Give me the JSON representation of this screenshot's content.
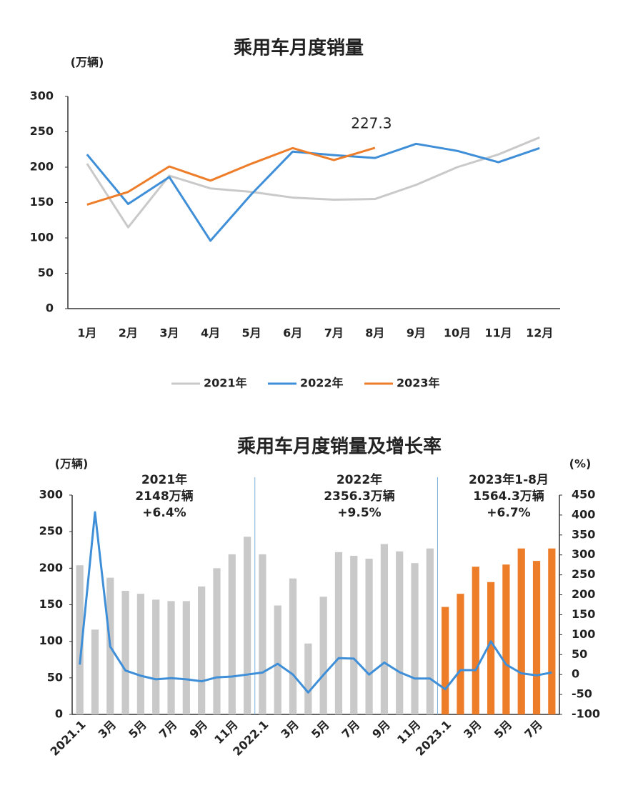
{
  "chart_data": [
    {
      "type": "line",
      "title": "乘用车月度销量",
      "y_unit": "(万辆)",
      "categories": [
        "1月",
        "2月",
        "3月",
        "4月",
        "5月",
        "6月",
        "7月",
        "8月",
        "9月",
        "10月",
        "11月",
        "12月"
      ],
      "series": [
        {
          "name": "2021年",
          "color": "#c9c9c9",
          "values": [
            205,
            115,
            188,
            170,
            165,
            157,
            154,
            155,
            175,
            200,
            218,
            242
          ]
        },
        {
          "name": "2022年",
          "color": "#3f8fd8",
          "values": [
            218,
            148,
            186,
            96,
            162,
            222,
            217,
            213,
            233,
            223,
            207,
            227
          ]
        },
        {
          "name": "2023年",
          "color": "#ee7d2a",
          "values": [
            147,
            165,
            201,
            181,
            205,
            227,
            210,
            227.3,
            null,
            null,
            null,
            null
          ],
          "label_last_point": true
        }
      ],
      "ylim": [
        0,
        300
      ],
      "yticks": [
        0,
        50,
        100,
        150,
        200,
        250,
        300
      ],
      "legend": "bottom"
    },
    {
      "type": "bar_line",
      "title": "乘用车月度销量及增长率",
      "y_unit": "(万辆)",
      "y2_unit": "(%)",
      "categories": [
        "2021.1",
        null,
        "3月",
        null,
        "5月",
        null,
        "7月",
        null,
        "9月",
        null,
        "11月",
        null,
        "2022.1",
        null,
        "3月",
        null,
        "5月",
        null,
        "7月",
        null,
        "9月",
        null,
        "11月",
        null,
        "2023.1",
        null,
        "3月",
        null,
        "5月",
        null,
        "7月",
        null
      ],
      "series": [
        {
          "type": "bar",
          "color": "#c9c9c9",
          "values": [
            204,
            116,
            187,
            169,
            165,
            157,
            155,
            155,
            175,
            200,
            219,
            243,
            219,
            149,
            186,
            97,
            161,
            222,
            217,
            213,
            233,
            223,
            207,
            227,
            null,
            null,
            null,
            null,
            null,
            null,
            null,
            null
          ]
        },
        {
          "type": "bar",
          "color": "#ee7d2a",
          "values": [
            null,
            null,
            null,
            null,
            null,
            null,
            null,
            null,
            null,
            null,
            null,
            null,
            null,
            null,
            null,
            null,
            null,
            null,
            null,
            null,
            null,
            null,
            null,
            null,
            147,
            165,
            202,
            181,
            205,
            227,
            210,
            227
          ]
        },
        {
          "type": "line",
          "axis": "y2",
          "color": "#3f8fd8",
          "values": [
            25,
            407,
            70,
            10,
            -3,
            -12,
            -9,
            -12,
            -17,
            -7,
            -5,
            0,
            5,
            27,
            0,
            -45,
            -1,
            41,
            40,
            0,
            30,
            6,
            -10,
            -10,
            -37,
            11,
            11,
            83,
            25,
            3,
            -2,
            5
          ]
        }
      ],
      "ylim": [
        0,
        300
      ],
      "yticks": [
        0,
        50,
        100,
        150,
        200,
        250,
        300
      ],
      "y2lim": [
        -100,
        450
      ],
      "y2ticks": [
        -100,
        -50,
        0,
        50,
        100,
        150,
        200,
        250,
        300,
        350,
        400,
        450
      ],
      "annotations": [
        {
          "lines": [
            "2021年",
            "2148万辆",
            "+6.4%"
          ]
        },
        {
          "lines": [
            "2022年",
            "2356.3万辆",
            "+9.5%"
          ]
        },
        {
          "lines": [
            "2023年1-8月",
            "1564.3万辆",
            "+6.7%"
          ]
        }
      ]
    }
  ]
}
